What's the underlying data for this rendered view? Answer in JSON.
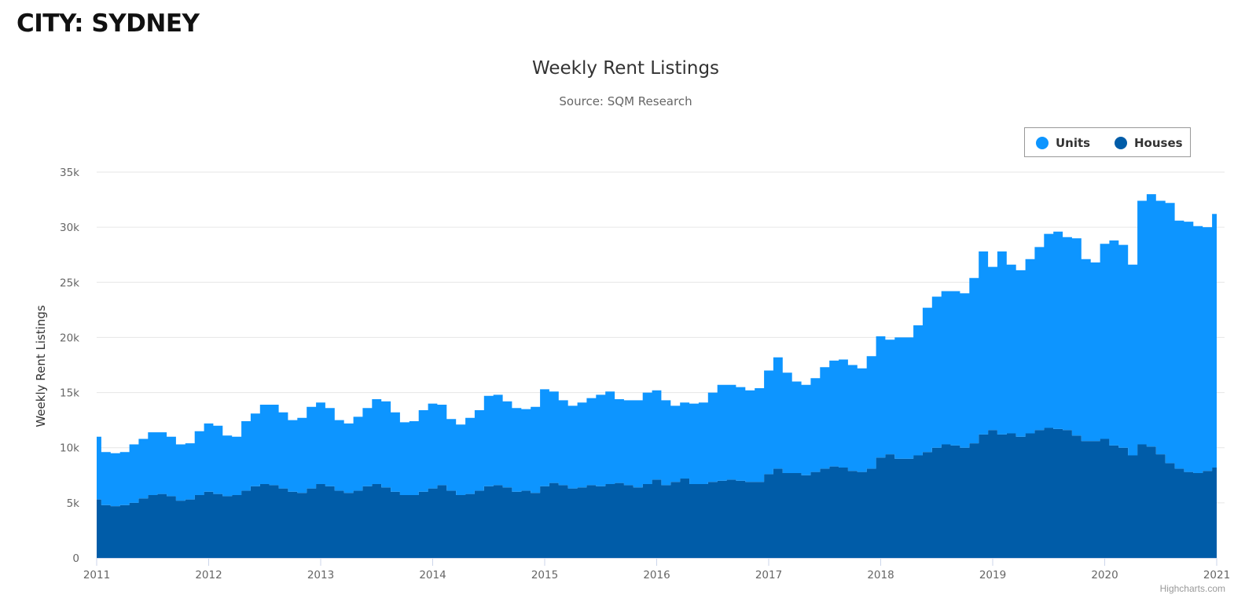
{
  "page": {
    "city_title": "CITY: SYDNEY",
    "credits": "Highcharts.com"
  },
  "chart_data": {
    "type": "area",
    "stacking": "normal",
    "title": "Weekly Rent Listings",
    "subtitle": "Source: SQM Research",
    "xlabel": "",
    "ylabel": "Weekly Rent Listings",
    "x_ticks": [
      "2011",
      "2012",
      "2013",
      "2014",
      "2015",
      "2016",
      "2017",
      "2018",
      "2019",
      "2020",
      "2021"
    ],
    "x_range": [
      "2011-01-01",
      "2021-01-01"
    ],
    "y_ticks": [
      0,
      5000,
      10000,
      15000,
      20000,
      25000,
      30000,
      35000
    ],
    "y_tick_labels": [
      "0",
      "5k",
      "10k",
      "15k",
      "20k",
      "25k",
      "30k",
      "35k"
    ],
    "ylim": [
      0,
      35000
    ],
    "grid": true,
    "legend_position": "top-right",
    "x": [
      "2011-01",
      "2011-02",
      "2011-03",
      "2011-04",
      "2011-05",
      "2011-06",
      "2011-07",
      "2011-08",
      "2011-09",
      "2011-10",
      "2011-11",
      "2011-12",
      "2012-01",
      "2012-02",
      "2012-03",
      "2012-04",
      "2012-05",
      "2012-06",
      "2012-07",
      "2012-08",
      "2012-09",
      "2012-10",
      "2012-11",
      "2012-12",
      "2013-01",
      "2013-02",
      "2013-03",
      "2013-04",
      "2013-05",
      "2013-06",
      "2013-07",
      "2013-08",
      "2013-09",
      "2013-10",
      "2013-11",
      "2013-12",
      "2014-01",
      "2014-02",
      "2014-03",
      "2014-04",
      "2014-05",
      "2014-06",
      "2014-07",
      "2014-08",
      "2014-09",
      "2014-10",
      "2014-11",
      "2014-12",
      "2015-01",
      "2015-02",
      "2015-03",
      "2015-04",
      "2015-05",
      "2015-06",
      "2015-07",
      "2015-08",
      "2015-09",
      "2015-10",
      "2015-11",
      "2015-12",
      "2016-01",
      "2016-02",
      "2016-03",
      "2016-04",
      "2016-05",
      "2016-06",
      "2016-07",
      "2016-08",
      "2016-09",
      "2016-10",
      "2016-11",
      "2016-12",
      "2017-01",
      "2017-02",
      "2017-03",
      "2017-04",
      "2017-05",
      "2017-06",
      "2017-07",
      "2017-08",
      "2017-09",
      "2017-10",
      "2017-11",
      "2017-12",
      "2018-01",
      "2018-02",
      "2018-03",
      "2018-04",
      "2018-05",
      "2018-06",
      "2018-07",
      "2018-08",
      "2018-09",
      "2018-10",
      "2018-11",
      "2018-12",
      "2019-01",
      "2019-02",
      "2019-03",
      "2019-04",
      "2019-05",
      "2019-06",
      "2019-07",
      "2019-08",
      "2019-09",
      "2019-10",
      "2019-11",
      "2019-12",
      "2020-01",
      "2020-02",
      "2020-03",
      "2020-04",
      "2020-05",
      "2020-06",
      "2020-07",
      "2020-08",
      "2020-09",
      "2020-10",
      "2020-11",
      "2020-12",
      "2021-01"
    ],
    "series": [
      {
        "name": "Houses",
        "color": "#005ca8",
        "values": [
          5300,
          4800,
          4700,
          4800,
          5000,
          5400,
          5700,
          5800,
          5600,
          5200,
          5300,
          5700,
          6000,
          5800,
          5600,
          5700,
          6100,
          6500,
          6700,
          6600,
          6300,
          6000,
          5900,
          6300,
          6700,
          6500,
          6100,
          5900,
          6100,
          6500,
          6700,
          6400,
          6000,
          5700,
          5700,
          6000,
          6300,
          6600,
          6100,
          5700,
          5800,
          6100,
          6500,
          6600,
          6400,
          6000,
          6100,
          5900,
          6500,
          6800,
          6600,
          6300,
          6400,
          6600,
          6500,
          6700,
          6800,
          6600,
          6400,
          6700,
          7100,
          6600,
          6900,
          7200,
          6700,
          6700,
          6900,
          7000,
          7100,
          7000,
          6900,
          6900,
          7600,
          8100,
          7700,
          7700,
          7500,
          7800,
          8100,
          8300,
          8200,
          7900,
          7800,
          8100,
          9100,
          9400,
          9000,
          9000,
          9300,
          9600,
          10000,
          10300,
          10200,
          10000,
          10400,
          11200,
          11600,
          11200,
          11300,
          11000,
          11300,
          11600,
          11800,
          11700,
          11600,
          11100,
          10600,
          10600,
          10800,
          10200,
          10000,
          9300,
          10300,
          10100,
          9400,
          8600,
          8100,
          7800,
          7700,
          7900,
          8200
        ]
      },
      {
        "name": "Units",
        "color": "#0d95ff",
        "values": [
          5700,
          4800,
          4800,
          4800,
          5300,
          5400,
          5700,
          5600,
          5400,
          5100,
          5100,
          5800,
          6200,
          6200,
          5500,
          5300,
          6300,
          6600,
          7200,
          7300,
          6900,
          6500,
          6800,
          7400,
          7400,
          7100,
          6400,
          6300,
          6700,
          7100,
          7700,
          7800,
          7200,
          6600,
          6700,
          7400,
          7700,
          7300,
          6500,
          6400,
          6900,
          7300,
          8200,
          8200,
          7800,
          7600,
          7400,
          7800,
          8800,
          8300,
          7700,
          7500,
          7700,
          7900,
          8300,
          8400,
          7600,
          7700,
          7900,
          8300,
          8100,
          7700,
          6900,
          6900,
          7300,
          7400,
          8100,
          8700,
          8600,
          8500,
          8300,
          8500,
          9400,
          10100,
          9100,
          8300,
          8200,
          8500,
          9200,
          9600,
          9800,
          9600,
          9400,
          10200,
          11000,
          10400,
          11000,
          11000,
          11800,
          13100,
          13700,
          13900,
          14000,
          14000,
          15000,
          16600,
          14800,
          16600,
          15300,
          15100,
          15800,
          16600,
          17600,
          17900,
          17500,
          17900,
          16500,
          16200,
          17700,
          18600,
          18400,
          17300,
          22100,
          22900,
          23000,
          23600,
          22500,
          22700,
          22400,
          22100,
          23000
        ]
      }
    ]
  }
}
